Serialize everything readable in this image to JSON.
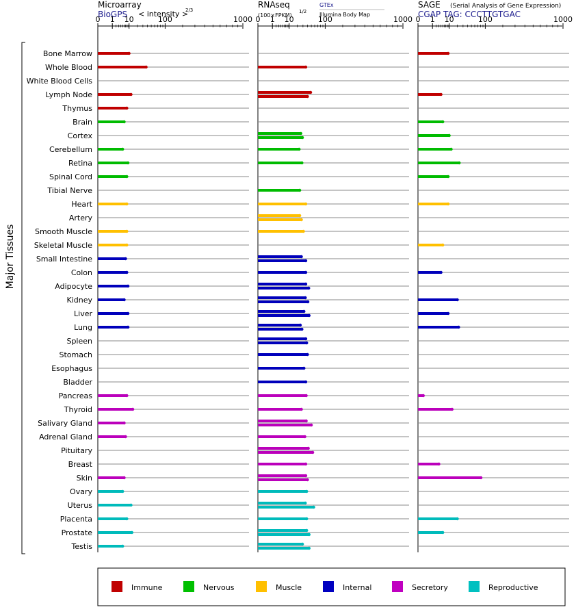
{
  "chart_data": {
    "type": "bar",
    "y_axis_label": "Major Tissues",
    "tissues": [
      "Bone Marrow",
      "Whole Blood",
      "White Blood Cells",
      "Lymph Node",
      "Thymus",
      "Brain",
      "Cortex",
      "Cerebellum",
      "Retina",
      "Spinal Cord",
      "Tibial Nerve",
      "Heart",
      "Artery",
      "Smooth Muscle",
      "Skeletal Muscle",
      "Small Intestine",
      "Colon",
      "Adipocyte",
      "Kidney",
      "Liver",
      "Lung",
      "Spleen",
      "Stomach",
      "Esophagus",
      "Bladder",
      "Pancreas",
      "Thyroid",
      "Salivary Gland",
      "Adrenal Gland",
      "Pituitary",
      "Breast",
      "Skin",
      "Ovary",
      "Uterus",
      "Placenta",
      "Prostate",
      "Testis"
    ],
    "tissue_groups": [
      "Immune",
      "Immune",
      "Immune",
      "Immune",
      "Immune",
      "Nervous",
      "Nervous",
      "Nervous",
      "Nervous",
      "Nervous",
      "Nervous",
      "Muscle",
      "Muscle",
      "Muscle",
      "Muscle",
      "Internal",
      "Internal",
      "Internal",
      "Internal",
      "Internal",
      "Internal",
      "Internal",
      "Internal",
      "Internal",
      "Internal",
      "Secretory",
      "Secretory",
      "Secretory",
      "Secretory",
      "Secretory",
      "Secretory",
      "Secretory",
      "Reproductive",
      "Reproductive",
      "Reproductive",
      "Reproductive",
      "Reproductive"
    ],
    "tick_labels": [
      "0",
      "1",
      "10",
      "100",
      "1000"
    ],
    "tick_values": [
      0,
      1,
      10,
      100,
      1000
    ],
    "panels": [
      {
        "id": "microarray",
        "title": "Microarray",
        "source": "BioGPS",
        "scale_label": "< intensity >",
        "scale_exponent": "2/3",
        "values": [
          [
            10
          ],
          [
            37
          ],
          [],
          [
            12
          ],
          [
            8
          ],
          [
            6
          ],
          [],
          [
            5
          ],
          [
            9
          ],
          [
            8
          ],
          [],
          [
            8
          ],
          [],
          [
            8
          ],
          [
            8
          ],
          [
            7
          ],
          [
            8
          ],
          [
            9
          ],
          [
            6
          ],
          [
            9
          ],
          [
            9
          ],
          [],
          [],
          [],
          [],
          [
            8
          ],
          [
            14
          ],
          [
            6
          ],
          [
            7
          ],
          [],
          [],
          [
            6
          ],
          [
            5
          ],
          [
            12
          ],
          [
            8
          ],
          [
            13
          ],
          [
            5
          ]
        ]
      },
      {
        "id": "rnaseq",
        "title": "RNAseq",
        "scale_label": "(100×FPKM)",
        "scale_exponent": "1/2",
        "sources": [
          "GTEx",
          "Illumina Body Map"
        ],
        "values": [
          [],
          [
            36
          ],
          [],
          [
            48,
            40
          ],
          [],
          [],
          [
            26,
            29
          ],
          [
            23
          ],
          [
            28
          ],
          [],
          [
            24
          ],
          [
            36
          ],
          [
            24,
            27
          ],
          [
            31
          ],
          [],
          [
            27,
            36
          ],
          [
            36
          ],
          [
            36,
            43
          ],
          [
            35,
            41
          ],
          [
            32,
            44
          ],
          [
            25,
            28
          ],
          [
            36,
            38
          ],
          [
            40
          ],
          [
            32
          ],
          [
            36
          ],
          [
            37
          ],
          [
            27
          ],
          [
            37,
            50
          ],
          [
            34
          ],
          [
            42,
            54
          ],
          [
            36
          ],
          [
            36,
            40
          ],
          [
            38
          ],
          [
            35,
            57
          ],
          [
            38
          ],
          [
            38,
            44
          ],
          [
            29,
            44
          ]
        ]
      },
      {
        "id": "sage",
        "title": "SAGE",
        "subtitle": "(Serial Analysis of Gene Expression)",
        "tag_label": "CGAP TAG: CCCTTGTGAC",
        "values": [
          [
            9
          ],
          [],
          [],
          [
            4
          ],
          [],
          [
            5
          ],
          [
            10
          ],
          [
            12
          ],
          [
            23
          ],
          [
            9
          ],
          [],
          [
            9
          ],
          [],
          [],
          [
            5
          ],
          [],
          [
            4
          ],
          [],
          [
            20
          ],
          [
            9
          ],
          [
            22
          ],
          [],
          [],
          [],
          [],
          [
            0.05
          ],
          [
            13
          ],
          [],
          [],
          [],
          [
            3
          ],
          [
            82
          ],
          [],
          [],
          [
            20
          ],
          [
            5
          ],
          []
        ]
      }
    ],
    "legend": [
      {
        "name": "Immune",
        "color": "#c00000"
      },
      {
        "name": "Nervous",
        "color": "#00c000"
      },
      {
        "name": "Muscle",
        "color": "#ffc000"
      },
      {
        "name": "Internal",
        "color": "#0000c0"
      },
      {
        "name": "Secretory",
        "color": "#c000c0"
      },
      {
        "name": "Reproductive",
        "color": "#00c0c0"
      }
    ],
    "bar_colors": {
      "Immune": "#c00000",
      "Nervous": "#00bb00",
      "Muscle": "#ffc000",
      "Internal": "#0000bb",
      "Secretory": "#bb00bb",
      "Reproductive": "#00bbbb"
    }
  }
}
